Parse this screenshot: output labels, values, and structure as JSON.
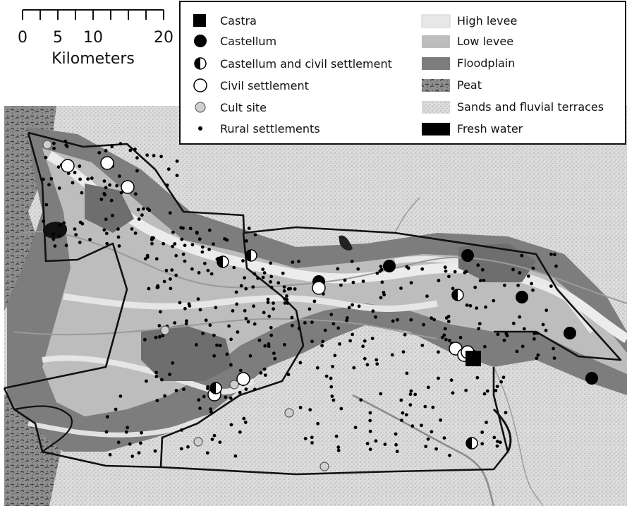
{
  "scale_bar": {
    "labels": [
      "0",
      "5",
      "10",
      "20"
    ],
    "unit": "Kilometers"
  },
  "legend": {
    "sites": [
      {
        "label": "Castra",
        "symbol": "square"
      },
      {
        "label": "Castellum",
        "symbol": "filled-circle"
      },
      {
        "label": "Castellum and civil settlement",
        "symbol": "half-circle"
      },
      {
        "label": "Civil settlement",
        "symbol": "open-circle"
      },
      {
        "label": "Cult site",
        "symbol": "grey-circle"
      },
      {
        "label": "Rural settlements",
        "symbol": "dot"
      }
    ],
    "landscape": [
      {
        "label": "High levee",
        "color": "#e8e8e8"
      },
      {
        "label": "Low levee",
        "color": "#bdbdbd"
      },
      {
        "label": "Floodplain",
        "color": "#7d7d7d"
      },
      {
        "label": "Peat",
        "color": "#8a8a8a"
      },
      {
        "label": "Sands and fluvial terraces",
        "color": "#d9d9d9"
      },
      {
        "label": "Fresh water",
        "color": "#000000"
      }
    ]
  }
}
